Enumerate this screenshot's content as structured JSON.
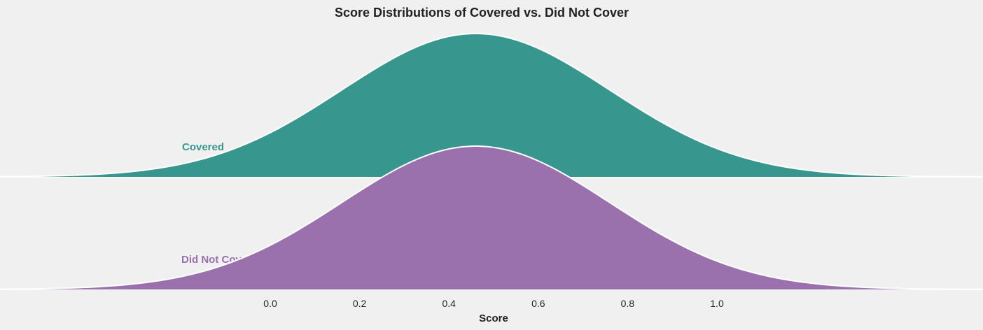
{
  "chart_data": {
    "type": "area",
    "title": "Score Distributions of Covered vs. Did Not Cover",
    "xlabel": "Score",
    "ylabel": "",
    "x_ticks": [
      0.0,
      0.2,
      0.4,
      0.6,
      0.8,
      1.0
    ],
    "x_tick_labels": [
      "0.0",
      "0.2",
      "0.4",
      "0.6",
      "0.8",
      "1.0"
    ],
    "xlim": [
      -1.2,
      2.2
    ],
    "grid": false,
    "series": [
      {
        "name": "Covered",
        "color": "#37978f",
        "distribution": "normal",
        "mean": 0.46,
        "sd": 0.3,
        "peak_density": 1.0
      },
      {
        "name": "Did Not Cover",
        "color": "#9a71ad",
        "distribution": "normal",
        "mean": 0.46,
        "sd": 0.3,
        "peak_density": 1.0
      }
    ]
  }
}
